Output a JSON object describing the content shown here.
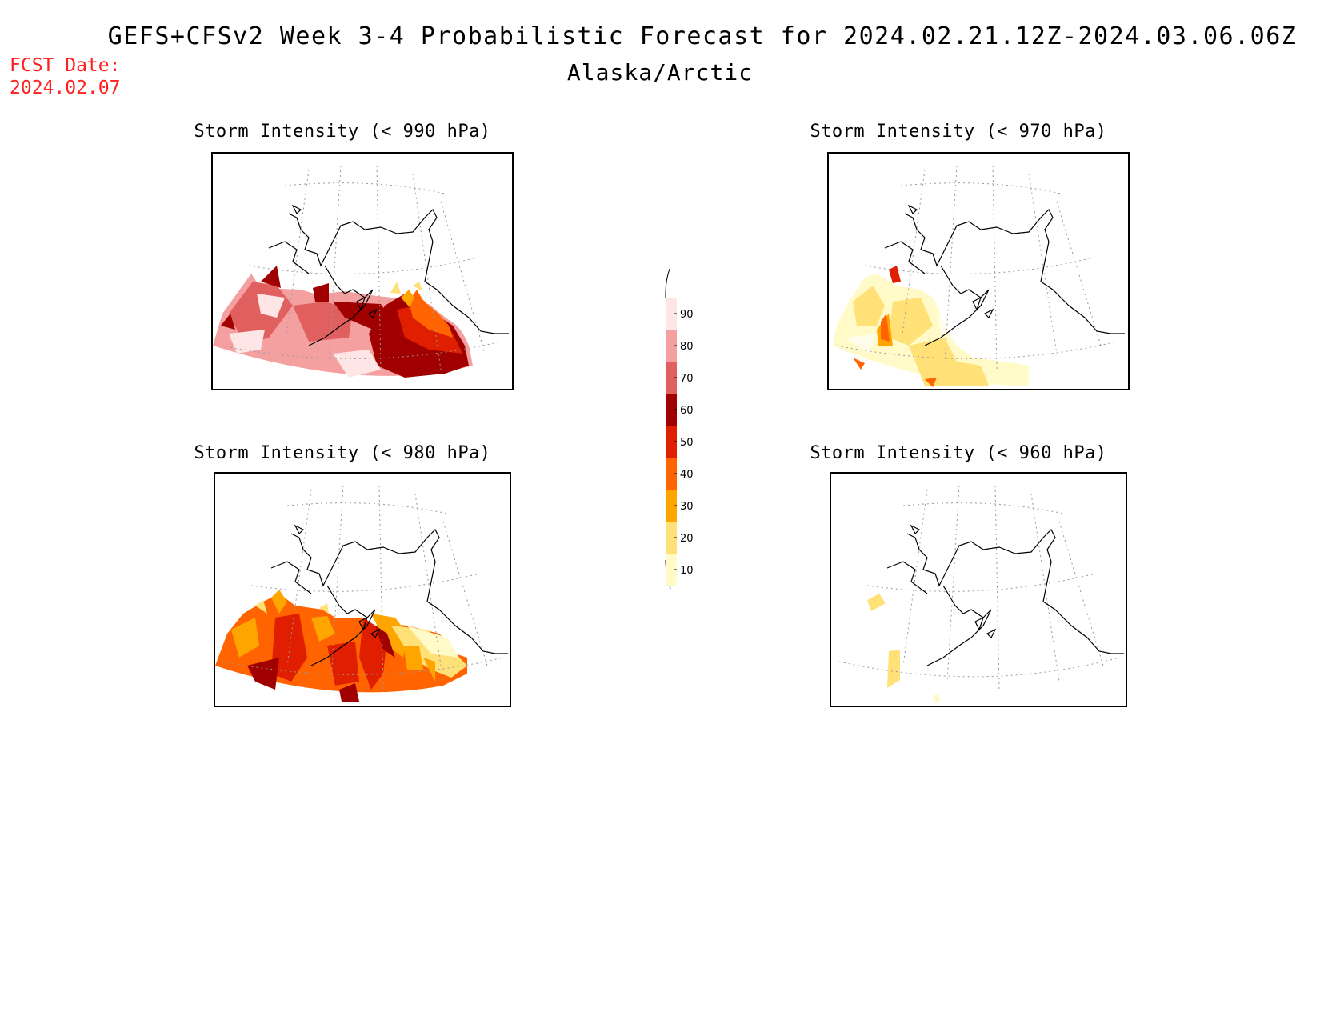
{
  "header": {
    "title": "GEFS+CFSv2 Week 3-4 Probabilistic Forecast for 2024.02.21.12Z-2024.03.06.06Z",
    "subtitle": "Alaska/Arctic",
    "fcst_label": "FCST Date:",
    "fcst_date": "2024.02.07"
  },
  "panels": [
    {
      "id": "p990",
      "title": "Storm Intensity (< 990 hPa)",
      "threshold_hPa": 990,
      "dominant_probability_range": "60-90+"
    },
    {
      "id": "p970",
      "title": "Storm Intensity (< 970 hPa)",
      "threshold_hPa": 970,
      "dominant_probability_range": "10-50"
    },
    {
      "id": "p980",
      "title": "Storm Intensity (< 980 hPa)",
      "threshold_hPa": 980,
      "dominant_probability_range": "20-70"
    },
    {
      "id": "p960",
      "title": "Storm Intensity (< 960 hPa)",
      "threshold_hPa": 960,
      "dominant_probability_range": "10-20"
    }
  ],
  "colorbar": {
    "ticks": [
      "90",
      "80",
      "70",
      "60",
      "50",
      "40",
      "30",
      "20",
      "10"
    ],
    "colors": [
      "#ffe6e6",
      "#f4a0a0",
      "#e06060",
      "#a00000",
      "#e01e00",
      "#ff6400",
      "#ffa500",
      "#ffe178",
      "#fffac8"
    ]
  }
}
